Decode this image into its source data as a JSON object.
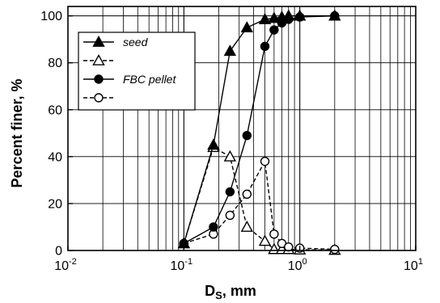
{
  "chart_data": {
    "type": "line",
    "title": "",
    "xlabel": "Ds, mm",
    "xlabel_main": "D",
    "xlabel_sub": "S",
    "xlabel_rest": ", mm",
    "ylabel": "Percent finer, %",
    "xscale": "log",
    "xlim": [
      0.01,
      10
    ],
    "ylim": [
      0,
      104
    ],
    "grid": true,
    "legend_position": "top-left",
    "x_ticks": [
      {
        "base": "10",
        "exp": "-2"
      },
      {
        "base": "10",
        "exp": "-1"
      },
      {
        "base": "10",
        "exp": "0"
      },
      {
        "base": "10",
        "exp": "1"
      }
    ],
    "y_ticks": [
      "0",
      "20",
      "40",
      "60",
      "80",
      "100"
    ],
    "series": [
      {
        "name": "seed",
        "marker": "triangle-filled",
        "line": "solid",
        "x": [
          0.1,
          0.18,
          0.25,
          0.35,
          0.5,
          0.6,
          0.7,
          0.8,
          1.0,
          2.0
        ],
        "y": [
          3,
          45,
          85,
          95,
          98.5,
          99,
          99.5,
          100,
          100,
          100
        ]
      },
      {
        "name": "",
        "marker": "triangle-open",
        "line": "dashed",
        "x": [
          0.1,
          0.18,
          0.25,
          0.35,
          0.5,
          0.6,
          0.7,
          0.8,
          1.0,
          2.0
        ],
        "y": [
          3,
          44,
          40,
          10,
          4,
          0.5,
          0.5,
          0.5,
          0.3,
          0.2
        ]
      },
      {
        "name": "FBC pellet",
        "marker": "circle-filled",
        "line": "solid",
        "x": [
          0.1,
          0.18,
          0.25,
          0.35,
          0.5,
          0.6,
          0.7,
          0.8,
          1.0,
          2.0
        ],
        "y": [
          3,
          10,
          25,
          49,
          87,
          94,
          97,
          98.5,
          99.5,
          100
        ]
      },
      {
        "name": "",
        "marker": "circle-open",
        "line": "dashed",
        "x": [
          0.1,
          0.18,
          0.25,
          0.35,
          0.5,
          0.6,
          0.7,
          0.8,
          1.0,
          2.0
        ],
        "y": [
          3,
          7,
          15,
          24,
          38,
          7,
          3,
          1.5,
          1,
          0.5
        ]
      }
    ],
    "legend": [
      {
        "label": "seed",
        "marker": "triangle-filled",
        "line": "solid"
      },
      {
        "label": "",
        "marker": "triangle-open",
        "line": "dashed"
      },
      {
        "label": "FBC pellet",
        "marker": "circle-filled",
        "line": "solid"
      },
      {
        "label": "",
        "marker": "circle-open",
        "line": "dashed"
      }
    ]
  }
}
